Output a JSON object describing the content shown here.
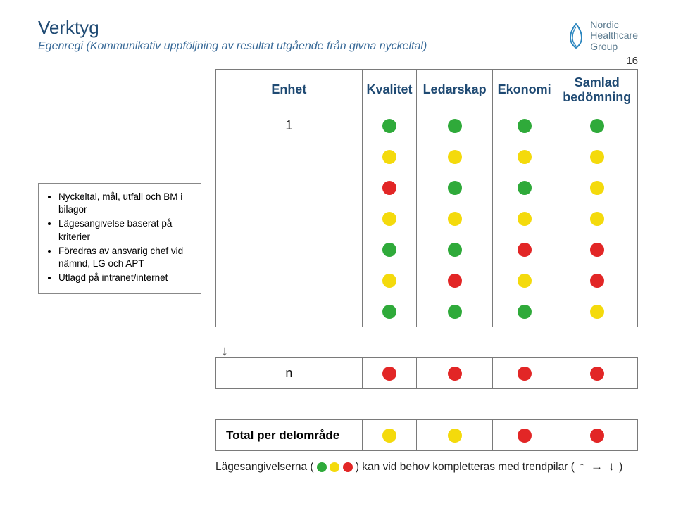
{
  "colors": {
    "title": "#1f4a73",
    "subtitle": "#3a6b99",
    "header_text": "#1f4a73",
    "hr": "#1f4a73",
    "logo_accent": "#2c86bf",
    "logo_text": "#5c7b8f",
    "green": "#2faa3a",
    "yellow": "#f4da0c",
    "red": "#e22626"
  },
  "page_number": "16",
  "header": {
    "title": "Verktyg",
    "subtitle": "Egenregi (Kommunikativ uppföljning av resultat utgående från givna nyckeltal)",
    "logo_lines": [
      "Nordic",
      "Healthcare",
      "Group"
    ]
  },
  "sidebox": {
    "items": [
      "Nyckeltal, mål, utfall och BM i bilagor",
      "Lägesangivelse baserat på kriterier",
      "Föredras av ansvarig chef vid nämnd, LG och APT",
      "Utlagd på intranet/internet"
    ]
  },
  "table": {
    "columns": [
      "Enhet",
      "Kvalitet",
      "Ledarskap",
      "Ekonomi",
      "Samlad bedömning"
    ],
    "rows": [
      {
        "label": "1",
        "cells": [
          "green",
          "green",
          "green",
          "green"
        ]
      },
      {
        "label": "",
        "cells": [
          "yellow",
          "yellow",
          "yellow",
          "yellow"
        ]
      },
      {
        "label": "",
        "cells": [
          "red",
          "green",
          "green",
          "yellow"
        ]
      },
      {
        "label": "",
        "cells": [
          "yellow",
          "yellow",
          "yellow",
          "yellow"
        ]
      },
      {
        "label": "",
        "cells": [
          "green",
          "green",
          "red",
          "red"
        ]
      },
      {
        "label": "",
        "cells": [
          "yellow",
          "red",
          "yellow",
          "red"
        ]
      },
      {
        "label": "",
        "cells": [
          "green",
          "green",
          "green",
          "yellow"
        ]
      },
      {
        "label": "n",
        "cells": [
          "red",
          "red",
          "red",
          "red"
        ]
      }
    ],
    "total_label": "Total per delområde",
    "total_cells": [
      "yellow",
      "yellow",
      "red",
      "red"
    ]
  },
  "footnote": {
    "prefix": "Lägesangivelserna (",
    "legend_colors": [
      "green",
      "yellow",
      "red"
    ],
    "mid": ") kan vid behov kompletteras med trendpilar (",
    "arrows": [
      "↑",
      "→",
      "↓"
    ],
    "suffix": ")"
  }
}
